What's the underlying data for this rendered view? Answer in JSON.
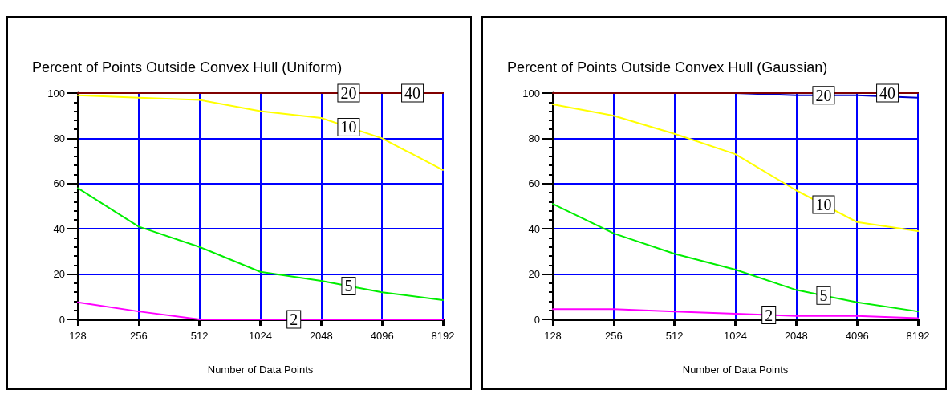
{
  "chart_data": [
    {
      "type": "line",
      "title": "Percent of Points Outside Convex Hull (Uniform)",
      "xlabel": "Number of Data Points",
      "categories": [
        "128",
        "256",
        "512",
        "1024",
        "2048",
        "4096",
        "8192"
      ],
      "series": [
        {
          "name": "2",
          "color": "#ff00ff",
          "values": [
            7.5,
            3.5,
            0,
            0,
            0,
            0,
            0
          ]
        },
        {
          "name": "5",
          "color": "#00ee00",
          "values": [
            58,
            41,
            32,
            21,
            17,
            12,
            8.5
          ]
        },
        {
          "name": "10",
          "color": "#ffff00",
          "values": [
            99,
            98,
            97,
            92,
            89,
            80,
            66
          ]
        },
        {
          "name": "20",
          "values": [
            null,
            null,
            null,
            null,
            null,
            null,
            null
          ]
        },
        {
          "name": "40",
          "color": "#800000",
          "values": [
            100,
            100,
            100,
            100,
            100,
            100,
            100
          ]
        }
      ],
      "ylim": [
        0,
        100
      ],
      "yticks": [
        0,
        20,
        40,
        60,
        80,
        100
      ],
      "grid": true,
      "marker": "none",
      "line_style": "solid"
    },
    {
      "type": "line",
      "title": "Percent of Points Outside Convex Hull (Gaussian)",
      "xlabel": "Number of Data Points",
      "categories": [
        "128",
        "256",
        "512",
        "1024",
        "2048",
        "4096",
        "8192"
      ],
      "series": [
        {
          "name": "2",
          "color": "#ff00ff",
          "values": [
            4.5,
            4.5,
            3.5,
            2.5,
            1.5,
            1.5,
            0.5
          ]
        },
        {
          "name": "5",
          "color": "#00ee00",
          "values": [
            51,
            38,
            29,
            22,
            13,
            7.5,
            3.5
          ]
        },
        {
          "name": "10",
          "color": "#ffff00",
          "values": [
            95,
            90,
            82,
            73,
            57,
            43,
            39
          ]
        },
        {
          "name": "20",
          "color": "#0000cc",
          "values": [
            null,
            null,
            null,
            100,
            99,
            99,
            98
          ]
        },
        {
          "name": "40",
          "color": "#800000",
          "values": [
            100,
            100,
            100,
            100,
            100,
            100,
            100
          ]
        }
      ],
      "ylim": [
        0,
        100
      ],
      "yticks": [
        0,
        20,
        40,
        60,
        80,
        100
      ],
      "grid": true,
      "marker": "none",
      "line_style": "solid"
    }
  ]
}
